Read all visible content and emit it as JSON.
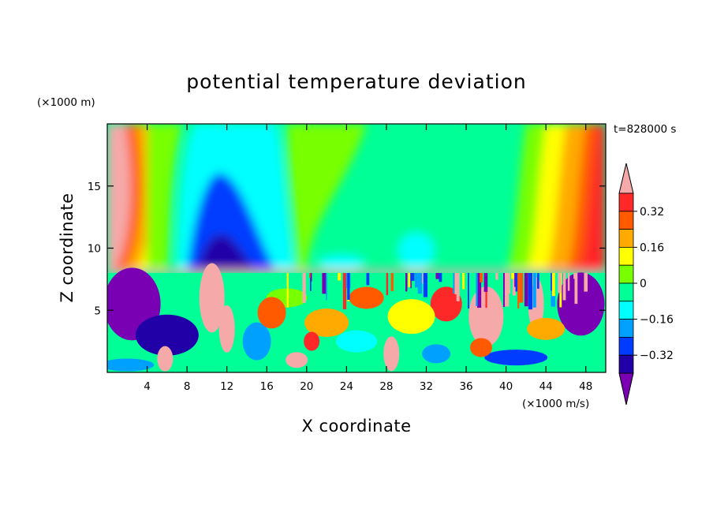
{
  "chart_data": {
    "type": "heatmap",
    "title": "potential temperature deviation",
    "xlabel": "X coordinate",
    "ylabel": "Z coordinate",
    "x_units": "(×1000 m/s)",
    "y_units": "(×1000 m)",
    "time_label": "t=828000 s",
    "xlim": [
      0,
      50
    ],
    "ylim": [
      0,
      20
    ],
    "x_ticks": [
      4,
      8,
      12,
      16,
      20,
      24,
      28,
      32,
      36,
      40,
      44,
      48
    ],
    "y_ticks": [
      5,
      10,
      15
    ],
    "colorbar": {
      "labels": [
        0.32,
        0.16,
        0,
        -0.16,
        -0.32
      ],
      "label_text": [
        "0.32",
        "0.16",
        "0",
        "−0.16",
        "−0.32"
      ],
      "levels": [
        -0.4,
        -0.32,
        -0.24,
        -0.16,
        -0.08,
        0,
        0.08,
        0.16,
        0.24,
        0.32,
        0.4
      ],
      "colors": [
        "#7a00b4",
        "#2200a8",
        "#003cff",
        "#00a0ff",
        "#00ffff",
        "#00ff96",
        "#78ff00",
        "#ffff00",
        "#ffaa00",
        "#ff5a00",
        "#ff2828",
        "#f5a9a9"
      ],
      "extend": "both"
    },
    "tropopause_height": 8
  }
}
